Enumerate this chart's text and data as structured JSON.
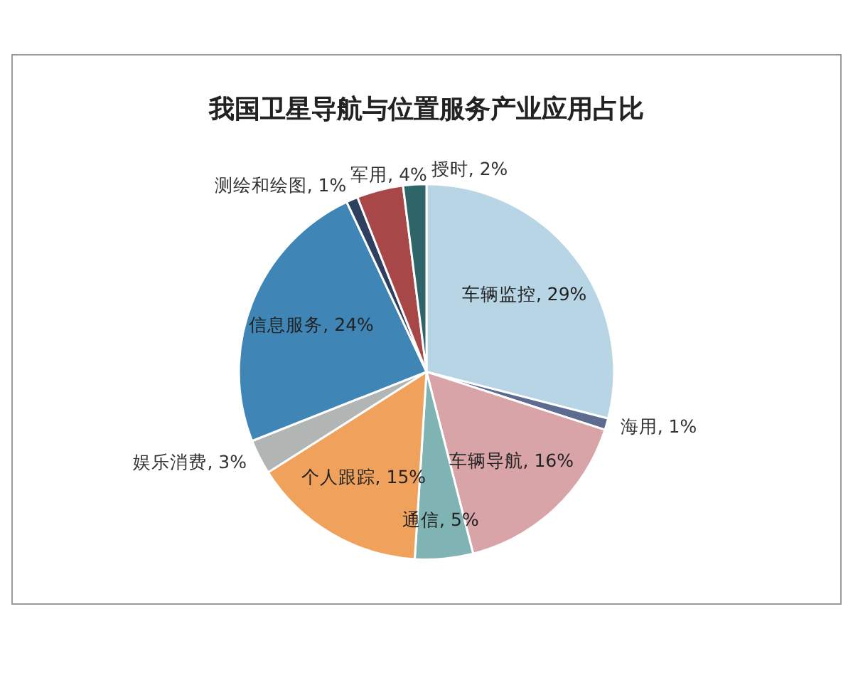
{
  "chart_data": {
    "type": "pie",
    "title": "我国卫星导航与位置服务产业应用占比",
    "categories": [
      "车辆监控",
      "海用",
      "车辆导航",
      "通信",
      "个人跟踪",
      "娱乐消费",
      "信息服务",
      "测绘和绘图",
      "军用",
      "授时"
    ],
    "values": [
      29,
      1,
      16,
      5,
      15,
      3,
      24,
      1,
      4,
      2
    ],
    "value_labels": [
      "29%",
      "1%",
      "16%",
      "5%",
      "15%",
      "3%",
      "24%",
      "1%",
      "4%",
      "2%"
    ],
    "colors": [
      "#b7d5e5",
      "#5c6b8f",
      "#d9a4a7",
      "#80b4b4",
      "#f0a15c",
      "#b1b6b4",
      "#3f86b6",
      "#2e3f5f",
      "#a84747",
      "#2f6568"
    ],
    "legend": false
  }
}
